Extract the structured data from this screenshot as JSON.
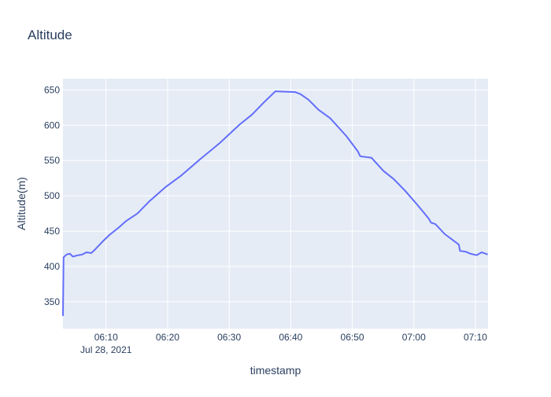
{
  "chart_data": {
    "type": "line",
    "title": "Altitude",
    "x_label": "timestamp",
    "y_label": "Altitude(m)",
    "x": [
      "2021-07-28T06:03:00",
      "2021-07-28T06:03:06",
      "2021-07-28T06:03:36",
      "2021-07-28T06:04:07",
      "2021-07-28T06:04:36",
      "2021-07-28T06:05:30",
      "2021-07-28T06:06:10",
      "2021-07-28T06:06:48",
      "2021-07-28T06:07:36",
      "2021-07-28T06:08:06",
      "2021-07-28T06:09:24",
      "2021-07-28T06:10:36",
      "2021-07-28T06:11:54",
      "2021-07-28T06:13:12",
      "2021-07-28T06:15:06",
      "2021-07-28T06:17:00",
      "2021-07-28T06:19:36",
      "2021-07-28T06:22:06",
      "2021-07-28T06:25:18",
      "2021-07-28T06:28:30",
      "2021-07-28T06:31:42",
      "2021-07-28T06:33:42",
      "2021-07-28T06:35:36",
      "2021-07-28T06:37:30",
      "2021-07-28T06:40:42",
      "2021-07-28T06:41:36",
      "2021-07-28T06:42:54",
      "2021-07-28T06:44:30",
      "2021-07-28T06:46:24",
      "2021-07-28T06:49:00",
      "2021-07-28T06:50:54",
      "2021-07-28T06:51:18",
      "2021-07-28T06:53:06",
      "2021-07-28T06:55:06",
      "2021-07-28T06:56:42",
      "2021-07-28T06:58:36",
      "2021-07-28T07:00:30",
      "2021-07-28T07:02:24",
      "2021-07-28T07:02:48",
      "2021-07-28T07:03:30",
      "2021-07-28T07:05:00",
      "2021-07-28T07:07:18",
      "2021-07-28T07:07:30",
      "2021-07-28T07:08:24",
      "2021-07-28T07:09:12",
      "2021-07-28T07:10:12",
      "2021-07-28T07:11:00",
      "2021-07-28T07:12:00"
    ],
    "values": [
      330,
      413,
      417,
      418,
      414,
      416,
      417,
      420,
      419,
      423,
      435,
      445,
      454,
      464,
      475,
      492,
      512,
      528,
      552,
      575,
      601,
      615,
      632,
      648,
      647,
      644,
      636,
      622,
      610,
      585,
      563,
      556,
      554,
      535,
      524,
      507,
      488,
      468,
      462,
      460,
      446,
      431,
      422,
      421,
      418,
      416,
      420,
      417
    ],
    "color": "#636efa",
    "xlim": [
      "2021-07-28T06:03:00",
      "2021-07-28T07:12:03"
    ],
    "xticks": [
      {
        "value": "2021-07-28T06:10:00",
        "label": "06:10"
      },
      {
        "value": "2021-07-28T06:20:00",
        "label": "06:20"
      },
      {
        "value": "2021-07-28T06:30:00",
        "label": "06:30"
      },
      {
        "value": "2021-07-28T06:40:00",
        "label": "06:40"
      },
      {
        "value": "2021-07-28T06:50:00",
        "label": "06:50"
      },
      {
        "value": "2021-07-28T07:00:00",
        "label": "07:00"
      },
      {
        "value": "2021-07-28T07:10:00",
        "label": "07:10"
      }
    ],
    "x_tick_date": "Jul 28, 2021",
    "ylim": [
      312,
      666
    ],
    "yticks": [
      350,
      400,
      450,
      500,
      550,
      600,
      650
    ],
    "grid": true
  }
}
